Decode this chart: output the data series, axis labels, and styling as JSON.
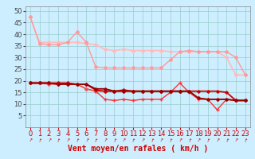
{
  "title": "",
  "xlabel": "Vent moyen/en rafales ( km/h )",
  "background_color": "#cceeff",
  "grid_color": "#99cccc",
  "xlim": [
    -0.5,
    23.5
  ],
  "ylim": [
    0,
    52
  ],
  "yticks": [
    5,
    10,
    15,
    20,
    25,
    30,
    35,
    40,
    45,
    50
  ],
  "xticks": [
    0,
    1,
    2,
    3,
    4,
    5,
    6,
    7,
    8,
    9,
    10,
    11,
    12,
    13,
    14,
    15,
    16,
    17,
    18,
    19,
    20,
    21,
    22,
    23
  ],
  "lines": [
    {
      "x": [
        0,
        1,
        2,
        3,
        4,
        5,
        6,
        7,
        8,
        9,
        10,
        11,
        12,
        13,
        14,
        15,
        16,
        17,
        18,
        19,
        20,
        21,
        22,
        23
      ],
      "y": [
        47.5,
        36.5,
        36.5,
        36.5,
        36.5,
        36.5,
        36.0,
        35.5,
        33.5,
        33.0,
        33.5,
        33.0,
        33.0,
        33.0,
        33.0,
        32.5,
        32.5,
        32.5,
        32.5,
        32.5,
        32.5,
        30.0,
        22.5,
        22.5
      ],
      "color": "#ffbbbb",
      "lw": 1.2,
      "marker": "D",
      "ms": 2.0,
      "zorder": 2
    },
    {
      "x": [
        0,
        1,
        2,
        3,
        4,
        5,
        6,
        7,
        8,
        9,
        10,
        11,
        12,
        13,
        14,
        15,
        16,
        17,
        18,
        19,
        20,
        21,
        22,
        23
      ],
      "y": [
        47.5,
        36.0,
        35.5,
        35.5,
        36.5,
        41.0,
        36.5,
        26.0,
        25.5,
        25.5,
        25.5,
        25.5,
        25.5,
        25.5,
        25.5,
        29.0,
        32.5,
        33.0,
        32.5,
        32.5,
        32.5,
        32.5,
        30.0,
        22.5
      ],
      "color": "#ff9999",
      "lw": 1.0,
      "marker": "D",
      "ms": 2.0,
      "zorder": 2
    },
    {
      "x": [
        0,
        1,
        2,
        3,
        4,
        5,
        6,
        7,
        8,
        9,
        10,
        11,
        12,
        13,
        14,
        15,
        16,
        17,
        18,
        19,
        20,
        21,
        22,
        23
      ],
      "y": [
        19.0,
        19.0,
        19.0,
        19.0,
        19.0,
        18.5,
        18.5,
        16.0,
        15.5,
        15.5,
        16.0,
        15.5,
        15.5,
        15.5,
        15.5,
        15.5,
        15.5,
        15.5,
        15.5,
        15.5,
        15.5,
        15.0,
        11.5,
        11.5
      ],
      "color": "#cc0000",
      "lw": 1.3,
      "marker": "D",
      "ms": 1.8,
      "zorder": 4
    },
    {
      "x": [
        0,
        1,
        2,
        3,
        4,
        5,
        6,
        7,
        8,
        9,
        10,
        11,
        12,
        13,
        14,
        15,
        16,
        17,
        18,
        19,
        20,
        21,
        22,
        23
      ],
      "y": [
        19.0,
        19.0,
        19.0,
        18.5,
        18.5,
        18.5,
        16.5,
        15.5,
        12.0,
        11.5,
        12.0,
        11.5,
        12.0,
        12.0,
        12.0,
        15.0,
        19.0,
        15.0,
        12.0,
        12.0,
        7.5,
        12.0,
        11.5,
        11.5
      ],
      "color": "#ff3333",
      "lw": 1.0,
      "marker": "+",
      "ms": 3.0,
      "zorder": 3
    },
    {
      "x": [
        0,
        1,
        2,
        3,
        4,
        5,
        6,
        7,
        8,
        9,
        10,
        11,
        12,
        13,
        14,
        15,
        16,
        17,
        18,
        19,
        20,
        21,
        22,
        23
      ],
      "y": [
        19.0,
        19.0,
        19.0,
        18.5,
        18.5,
        18.5,
        18.5,
        16.5,
        16.5,
        15.5,
        15.5,
        15.5,
        15.5,
        15.5,
        15.5,
        15.5,
        15.5,
        15.5,
        12.5,
        12.0,
        12.0,
        12.0,
        11.5,
        11.5
      ],
      "color": "#990000",
      "lw": 1.3,
      "marker": "D",
      "ms": 1.8,
      "zorder": 4
    },
    {
      "x": [
        0,
        1,
        2,
        3,
        4,
        5,
        6,
        7,
        8,
        9,
        10,
        11,
        12,
        13,
        14,
        15,
        16,
        17,
        18,
        19,
        20,
        21,
        22,
        23
      ],
      "y": [
        19.0,
        19.0,
        18.5,
        18.5,
        18.5,
        18.5,
        16.5,
        15.5,
        15.5,
        15.5,
        15.5,
        15.5,
        15.5,
        15.5,
        15.5,
        15.5,
        15.5,
        15.5,
        12.5,
        12.0,
        12.0,
        12.0,
        11.5,
        11.5
      ],
      "color": "#ee5555",
      "lw": 1.0,
      "marker": "D",
      "ms": 1.8,
      "zorder": 3
    }
  ],
  "arrow_color": "#cc0000",
  "xlabel_color": "#cc0000",
  "xlabel_fontsize": 7,
  "tick_fontsize": 6,
  "ytick_color": "#444444",
  "spine_color": "#888888"
}
